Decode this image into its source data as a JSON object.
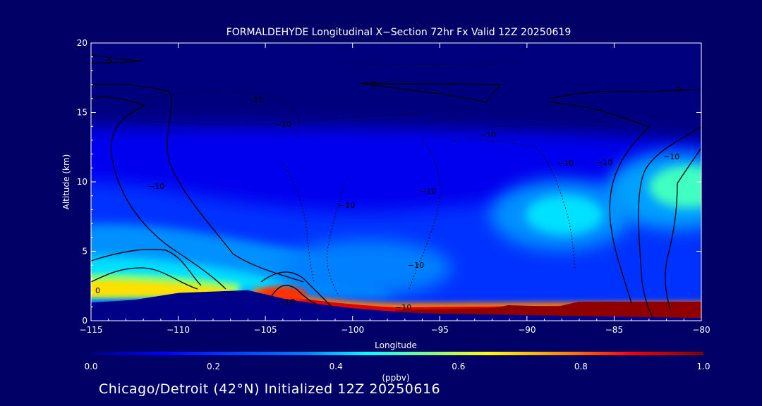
{
  "chart_data": {
    "type": "heatmap",
    "title": "FORMALDEHYDE Longitudinal X−Section 72hr  Fx Valid 12Z 20250619",
    "xlabel": "Longitude",
    "ylabel": "Altitude (km)",
    "xlim": [
      -115,
      -80
    ],
    "ylim": [
      0,
      20
    ],
    "x_ticks": [
      -115,
      -110,
      -105,
      -100,
      -95,
      -90,
      -85,
      -80
    ],
    "x_tick_labels": [
      "−115",
      "−110",
      "−105",
      "−100",
      "−95",
      "−90",
      "−85",
      "−80"
    ],
    "y_ticks": [
      0,
      5,
      10,
      15,
      20
    ],
    "y_tick_labels": [
      "0",
      "5",
      "10",
      "15",
      "20"
    ],
    "colorbar": {
      "label": "(ppbv)",
      "range": [
        0.0,
        1.0
      ],
      "ticks": [
        0.0,
        0.2,
        0.4,
        0.6,
        0.8,
        1.0
      ],
      "tick_labels": [
        "0.0",
        "0.2",
        "0.4",
        "0.6",
        "0.8",
        "1.0"
      ]
    },
    "terrain_km": [
      [
        -115,
        1.3
      ],
      [
        -112.5,
        1.5
      ],
      [
        -110,
        2.0
      ],
      [
        -108,
        2.1
      ],
      [
        -106,
        2.2
      ],
      [
        -104,
        1.6
      ],
      [
        -102,
        1.2
      ],
      [
        -100,
        0.9
      ],
      [
        -97,
        0.6
      ],
      [
        -95,
        0.5
      ],
      [
        -90,
        0.4
      ],
      [
        -85,
        0.3
      ],
      [
        -80,
        0.2
      ]
    ],
    "field_features": [
      {
        "name": "western low-level maximum",
        "lon": [
          -115,
          -106
        ],
        "alt_km": [
          1.5,
          3.0
        ],
        "value": 0.6
      },
      {
        "name": "peak near -104",
        "lon": [
          -104,
          -104
        ],
        "alt_km": [
          1.8,
          2.4
        ],
        "value": 0.95
      },
      {
        "name": "boundary layer maximum",
        "lon": [
          -100,
          -80
        ],
        "alt_km": [
          0.3,
          1.6
        ],
        "value": 1.0
      },
      {
        "name": "upper maximum near -89",
        "lon": [
          -89,
          -89
        ],
        "alt_km": [
          7.5,
          7.5
        ],
        "value": 0.45
      },
      {
        "name": "upper maximum near -81",
        "lon": [
          -81,
          -81
        ],
        "alt_km": [
          9.5,
          9.5
        ],
        "value": 0.55
      }
    ],
    "contour_labels": [
      "0",
      "0",
      "0",
      "0",
      "−10",
      "−10",
      "−10",
      "−10",
      "−10",
      "−10",
      "−10",
      "−10",
      "−10",
      "−10",
      "−10",
      "−10"
    ]
  },
  "footer": "Chicago/Detroit (42°N) Initialized 12Z 20250616",
  "colors": {
    "background": "#000066",
    "foreground": "#ffffff",
    "colormap": [
      "#00007f",
      "#0000ff",
      "#007fff",
      "#00ffff",
      "#7fff7f",
      "#ffff00",
      "#ff7f00",
      "#ff0000",
      "#7f0000"
    ]
  }
}
